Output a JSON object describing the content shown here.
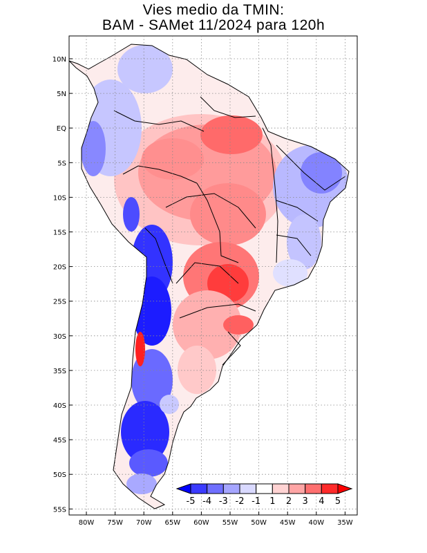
{
  "title": {
    "line1": "Vies medio da TMIN:",
    "line2": "BAM - SAMet 11/2024  para 120h"
  },
  "axes": {
    "lat_labels": [
      "10N",
      "5N",
      "EQ",
      "5S",
      "10S",
      "15S",
      "20S",
      "25S",
      "30S",
      "35S",
      "40S",
      "45S",
      "50S",
      "55S"
    ],
    "lon_labels": [
      "80W",
      "75W",
      "70W",
      "65W",
      "60W",
      "55W",
      "50W",
      "45W",
      "40W",
      "35W"
    ]
  },
  "colorbar": {
    "labels": [
      "-5",
      "-4",
      "-3",
      "-2",
      "-1",
      "1",
      "2",
      "3",
      "4",
      "5"
    ],
    "colors": [
      "#0000ff",
      "#3b3bff",
      "#6f6fff",
      "#a5a5ff",
      "#d9d9ff",
      "#ffffff",
      "#ffd3d3",
      "#ffa5a5",
      "#ff6f6f",
      "#ff2a2a",
      "#ff0000"
    ]
  },
  "palette": {
    "land_neutral": "#fdecec",
    "warm_light": "#ffb9b9",
    "warm_mid": "#ff8a8a",
    "warm_strong": "#ff4a4a",
    "cool_light": "#b8b8ff",
    "cool_mid": "#7b7bff",
    "cool_strong": "#1414ff"
  }
}
